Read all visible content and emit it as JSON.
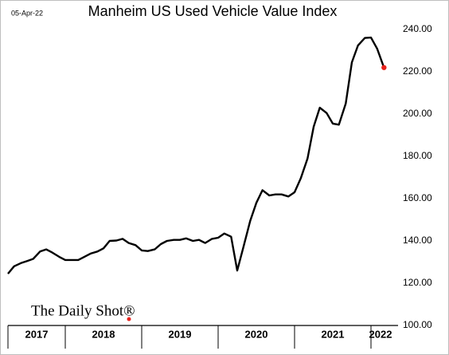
{
  "chart_data": {
    "type": "line",
    "title": "Manheim US Used Vehicle Value Index",
    "date": "05-Apr-22",
    "watermark": "The Daily Shot®",
    "x": [
      2017.25,
      2017.33,
      2017.42,
      2017.5,
      2017.58,
      2017.67,
      2017.75,
      2017.83,
      2017.92,
      2018.0,
      2018.08,
      2018.17,
      2018.25,
      2018.33,
      2018.42,
      2018.5,
      2018.58,
      2018.67,
      2018.75,
      2018.83,
      2018.92,
      2019.0,
      2019.08,
      2019.17,
      2019.25,
      2019.33,
      2019.42,
      2019.5,
      2019.58,
      2019.67,
      2019.75,
      2019.83,
      2019.92,
      2020.0,
      2020.08,
      2020.17,
      2020.25,
      2020.33,
      2020.42,
      2020.5,
      2020.58,
      2020.67,
      2020.75,
      2020.83,
      2020.92,
      2021.0,
      2021.08,
      2021.17,
      2021.25,
      2021.33,
      2021.42,
      2021.5,
      2021.58,
      2021.67,
      2021.75,
      2021.83,
      2021.92,
      2022.0,
      2022.08,
      2022.17
    ],
    "series": [
      {
        "name": "Manheim US Used Vehicle Value Index",
        "color": "#000000",
        "values": [
          124.5,
          128,
          129.5,
          130.5,
          131.5,
          135,
          136,
          134.5,
          132.5,
          131,
          131,
          131,
          132.5,
          134,
          135,
          136.5,
          140,
          140.2,
          141,
          139,
          138,
          135.5,
          135.2,
          136,
          138.5,
          140,
          140.5,
          140.5,
          141.2,
          140,
          140.5,
          139,
          141,
          141.5,
          143.5,
          142,
          126,
          137,
          149.5,
          158,
          164,
          161.5,
          162,
          162,
          161,
          163,
          169.5,
          179,
          194,
          203,
          200.5,
          195.5,
          195,
          205,
          224.5,
          232.5,
          236,
          236.2,
          231,
          222
        ]
      }
    ],
    "last_point_color": "#e8221c",
    "xlim": [
      2017.25,
      2022.25
    ],
    "xticks": [
      {
        "value": 2017.625,
        "label": "2017"
      },
      {
        "value": 2018.5,
        "label": "2018"
      },
      {
        "value": 2019.5,
        "label": "2019"
      },
      {
        "value": 2020.5,
        "label": "2020"
      },
      {
        "value": 2021.5,
        "label": "2021"
      },
      {
        "value": 2022.125,
        "label": "2022"
      }
    ],
    "xdividers": [
      2018,
      2019,
      2020,
      2021,
      2022
    ],
    "ylim": [
      100,
      240
    ],
    "yticks": [
      {
        "value": 100,
        "label": "100.00"
      },
      {
        "value": 120,
        "label": "120.00"
      },
      {
        "value": 140,
        "label": "140.00"
      },
      {
        "value": 160,
        "label": "160.00"
      },
      {
        "value": 180,
        "label": "180.00"
      },
      {
        "value": 200,
        "label": "200.00"
      },
      {
        "value": 220,
        "label": "220.00"
      },
      {
        "value": 240,
        "label": "240.00"
      }
    ],
    "grid": false
  }
}
